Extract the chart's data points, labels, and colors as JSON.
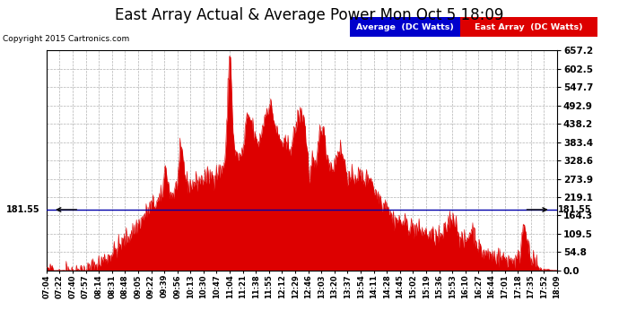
{
  "title": "East Array Actual & Average Power Mon Oct 5 18:09",
  "copyright": "Copyright 2015 Cartronics.com",
  "avg_line_y": 181.55,
  "yticks_right": [
    0.0,
    54.8,
    109.5,
    164.3,
    219.1,
    273.9,
    328.6,
    383.4,
    438.2,
    492.9,
    547.7,
    602.5,
    657.2
  ],
  "ymax": 657.2,
  "ymin": 0.0,
  "legend_avg_label": "Average  (DC Watts)",
  "legend_east_label": "East Array  (DC Watts)",
  "legend_avg_bg": "#0000cc",
  "legend_east_bg": "#dd0000",
  "bg_color": "#ffffff",
  "grid_color": "#aaaaaa",
  "fill_color": "#dd0000",
  "avg_line_color": "#0000aa",
  "title_fontsize": 12,
  "xtick_labels": [
    "07:04",
    "07:22",
    "07:40",
    "07:57",
    "08:14",
    "08:31",
    "08:48",
    "09:05",
    "09:22",
    "09:39",
    "09:56",
    "10:13",
    "10:30",
    "10:47",
    "11:04",
    "11:21",
    "11:38",
    "11:55",
    "12:12",
    "12:29",
    "12:46",
    "13:03",
    "13:20",
    "13:37",
    "13:54",
    "14:11",
    "14:28",
    "14:45",
    "15:02",
    "15:19",
    "15:36",
    "15:53",
    "16:10",
    "16:27",
    "16:44",
    "17:01",
    "17:18",
    "17:35",
    "17:52",
    "18:09"
  ]
}
